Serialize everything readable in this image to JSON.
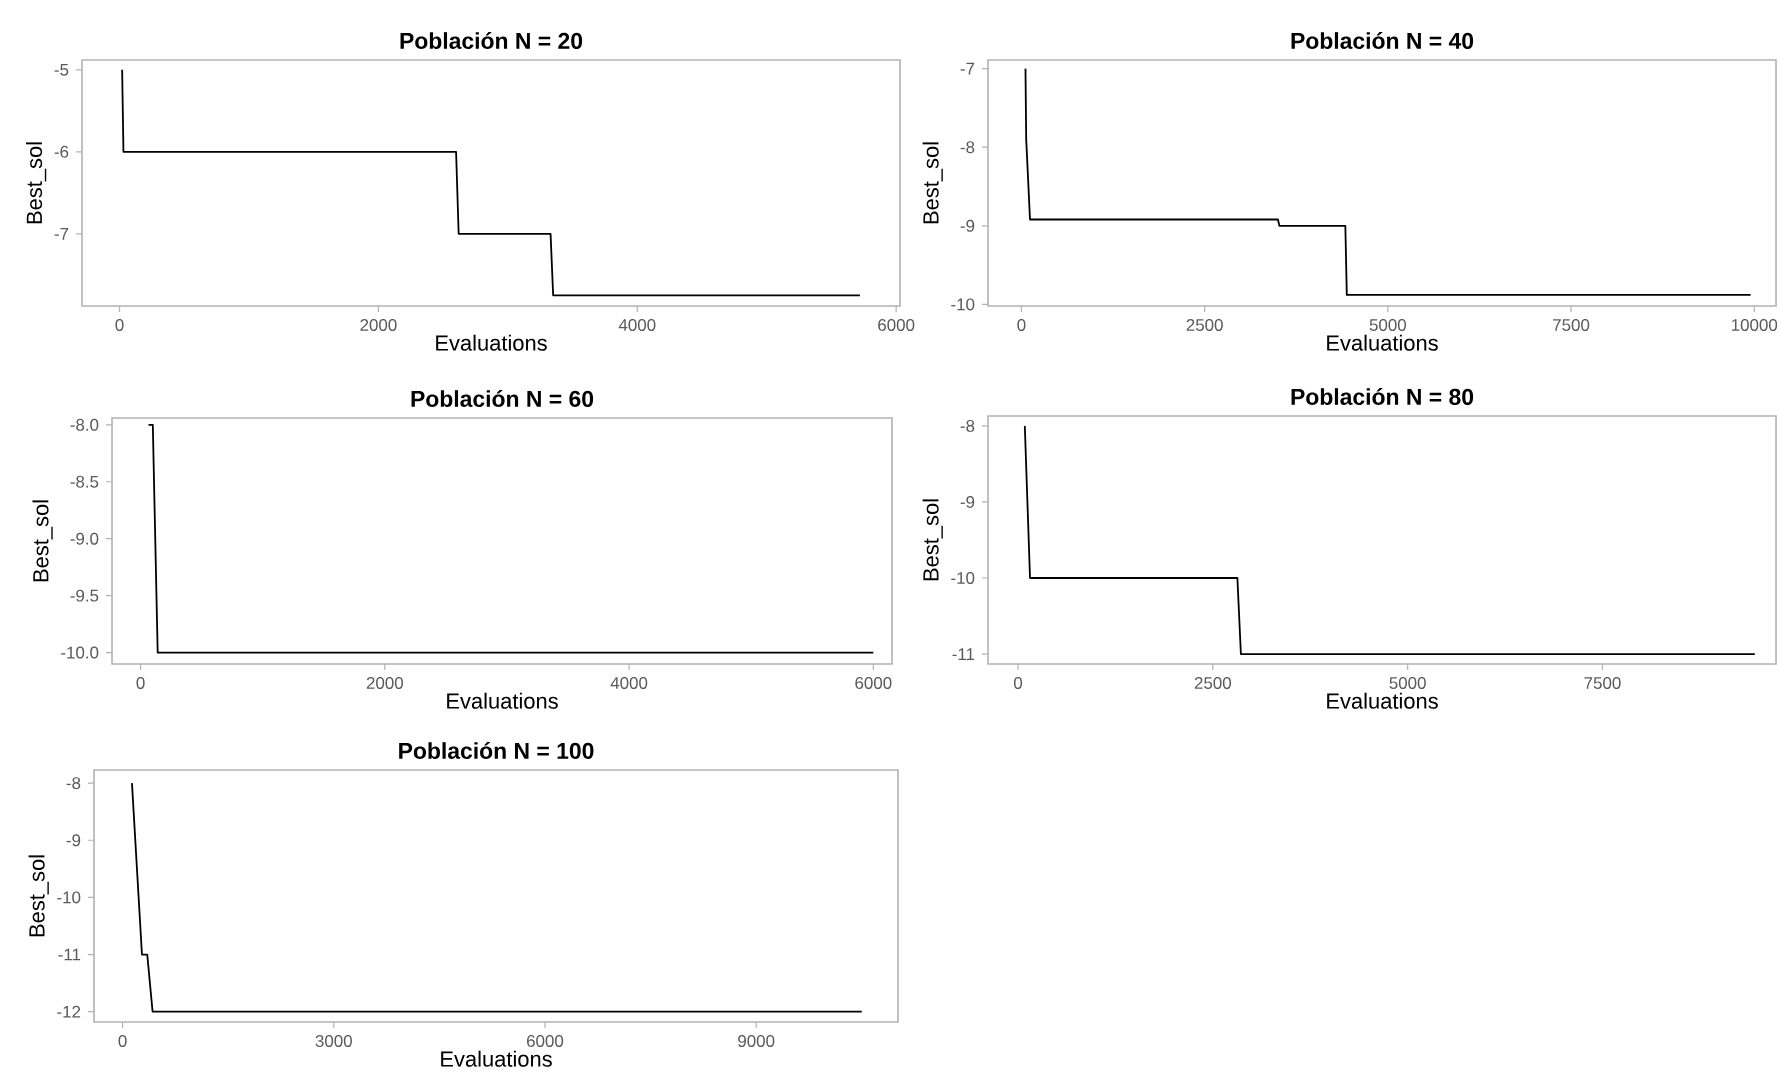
{
  "chart_data": [
    {
      "type": "line",
      "title": "Población N = 20",
      "xlabel": "Evaluations",
      "ylabel": "Best_sol",
      "color": "#000000",
      "x": [
        20,
        30,
        2600,
        2620,
        3330,
        3350,
        5720
      ],
      "values": [
        -5,
        -6,
        -6,
        -7,
        -7,
        -7.75,
        -7.75
      ],
      "xlim": [
        -290,
        6030
      ],
      "ylim": [
        -7.88,
        -4.88
      ],
      "xticks": [
        0,
        2000,
        4000,
        6000
      ],
      "yticks": [
        -7,
        -6,
        -5
      ]
    },
    {
      "type": "line",
      "title": "Población N = 40",
      "xlabel": "Evaluations",
      "ylabel": "Best_sol",
      "color": "#000000",
      "x": [
        55,
        65,
        117,
        3500,
        3520,
        4420,
        4440,
        9950
      ],
      "values": [
        -7,
        -7.9,
        -8.92,
        -8.92,
        -9,
        -9,
        -9.88,
        -9.88
      ],
      "xlim": [
        -456,
        10297
      ],
      "ylim": [
        -10.02,
        -6.89
      ],
      "xticks": [
        0,
        2500,
        5000,
        7500,
        10000
      ],
      "yticks": [
        -10,
        -9,
        -8,
        -7
      ]
    },
    {
      "type": "line",
      "title": "Población N = 60",
      "xlabel": "Evaluations",
      "ylabel": "Best_sol",
      "color": "#000000",
      "x": [
        65,
        100,
        140,
        6000
      ],
      "values": [
        -8,
        -8,
        -10,
        -10
      ],
      "xlim": [
        -234,
        6153
      ],
      "ylim": [
        -10.1,
        -7.94
      ],
      "xticks": [
        0,
        2000,
        4000,
        6000
      ],
      "yticks": [
        {
          "value": -10,
          "label": "-10.0"
        },
        {
          "value": -9.5,
          "label": "-9.5"
        },
        {
          "value": -9,
          "label": "-9.0"
        },
        {
          "value": -8.5,
          "label": "-8.5"
        },
        {
          "value": -8,
          "label": "-8.0"
        }
      ]
    },
    {
      "type": "line",
      "title": "Población N = 80",
      "xlabel": "Evaluations",
      "ylabel": "Best_sol",
      "color": "#000000",
      "x": [
        87,
        154,
        2815,
        2860,
        9455
      ],
      "values": [
        -8,
        -10,
        -10,
        -11,
        -11
      ],
      "xlim": [
        -385,
        9727
      ],
      "ylim": [
        -11.13,
        -7.87
      ],
      "xticks": [
        0,
        2500,
        5000,
        7500
      ],
      "yticks": [
        -11,
        -10,
        -9,
        -8
      ]
    },
    {
      "type": "line",
      "title": "Población N = 100",
      "xlabel": "Evaluations",
      "ylabel": "Best_sol",
      "color": "#000000",
      "x": [
        133,
        275,
        350,
        426,
        10500
      ],
      "values": [
        -8,
        -11,
        -11,
        -12,
        -12
      ],
      "xlim": [
        -406,
        11015
      ],
      "ylim": [
        -12.18,
        -7.77
      ],
      "xticks": [
        0,
        3000,
        6000,
        9000
      ],
      "yticks": [
        -12,
        -11,
        -10,
        -9,
        -8
      ]
    }
  ]
}
